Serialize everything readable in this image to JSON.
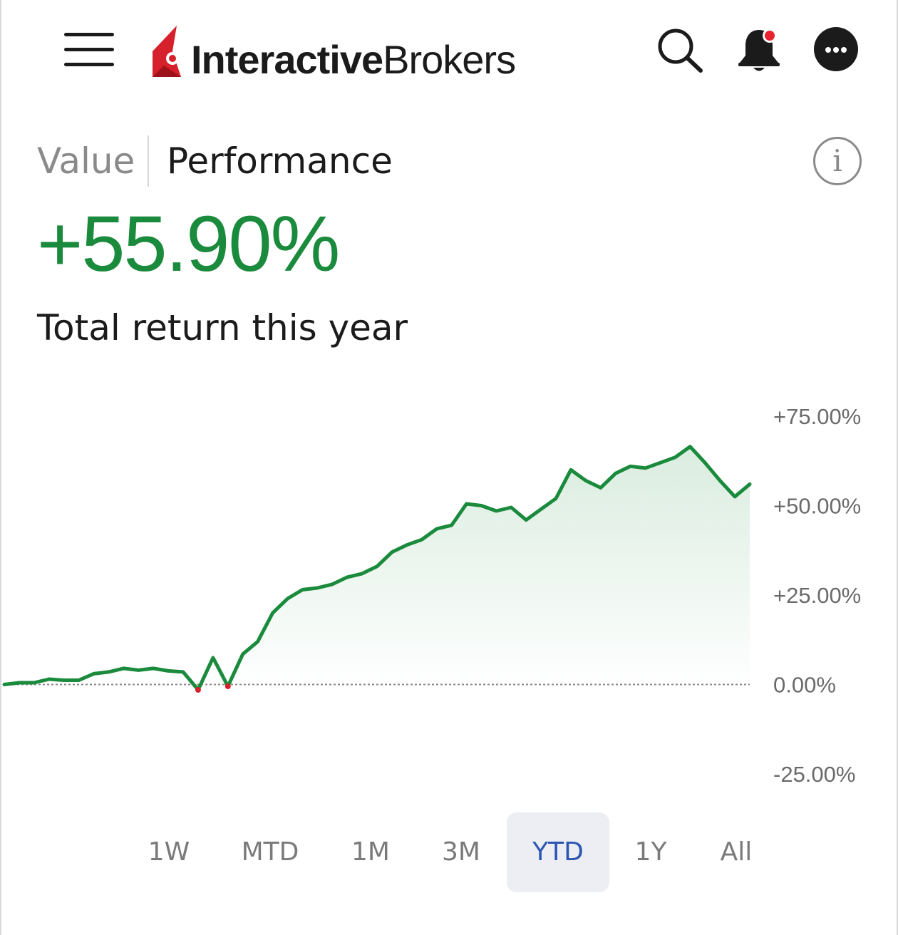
{
  "header": {
    "brand_bold": "Interactive",
    "brand_regular": "Brokers",
    "icons": [
      "menu-icon",
      "search-icon",
      "notification-bell-icon",
      "more-options-icon"
    ],
    "colors": {
      "brand_red": "#d6202b",
      "notification_dot": "#e8222e"
    }
  },
  "tabs": {
    "value": "Value",
    "performance": "Performance",
    "active": "Performance"
  },
  "summary": {
    "return": "+55.90%",
    "subtitle": "Total return this year"
  },
  "chart_data": {
    "type": "area",
    "y_ticks": [
      "+75.00%",
      "+50.00%",
      "+25.00%",
      "0.00%",
      "-25.00%"
    ],
    "ylim": [
      -25,
      75
    ],
    "baseline": 0,
    "x": [
      0,
      2,
      4,
      6,
      8,
      10,
      12,
      14,
      16,
      18,
      20,
      22,
      24,
      26,
      28,
      30,
      32,
      34,
      36,
      38,
      40,
      42,
      44,
      46,
      48,
      50,
      52,
      54,
      56,
      58,
      60,
      62,
      64,
      66,
      68,
      70,
      72,
      74,
      76,
      78,
      80,
      82,
      84,
      86,
      88,
      90,
      92,
      94,
      96,
      98,
      100
    ],
    "values": [
      0.0,
      0.5,
      0.5,
      1.5,
      1.2,
      1.2,
      3.0,
      3.5,
      4.5,
      4.0,
      4.5,
      3.8,
      3.5,
      -1.5,
      7.5,
      -0.5,
      8.5,
      12.0,
      20.0,
      24.0,
      26.5,
      27.0,
      28.0,
      30.0,
      31.0,
      33.0,
      37.0,
      39.0,
      40.5,
      43.5,
      44.5,
      50.5,
      50.0,
      48.5,
      49.5,
      46.0,
      49.0,
      52.0,
      60.0,
      57.0,
      55.0,
      59.0,
      61.0,
      60.5,
      62.0,
      63.5,
      66.5,
      62.0,
      57.0,
      52.5,
      56.0
    ],
    "line_color": "#1a8a3c",
    "negative_color": "#d6202b",
    "grid": false,
    "zero_line": "dotted"
  },
  "ranges": {
    "items": [
      "1W",
      "MTD",
      "1M",
      "3M",
      "YTD",
      "1Y",
      "All"
    ],
    "active": "YTD"
  }
}
